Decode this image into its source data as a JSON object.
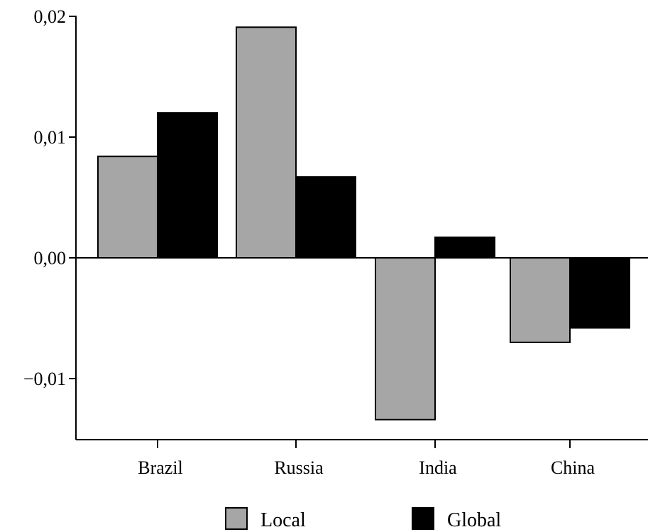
{
  "chart_data": {
    "type": "bar",
    "categories": [
      "Brazil",
      "Russia",
      "India",
      "China"
    ],
    "series": [
      {
        "name": "Local",
        "values": [
          0.0084,
          0.0191,
          -0.0134,
          -0.007
        ],
        "color": "#a6a6a6"
      },
      {
        "name": "Global",
        "values": [
          0.012,
          0.0067,
          0.0017,
          -0.0058
        ],
        "color": "#000000"
      }
    ],
    "ylim": [
      -0.015,
      0.02
    ],
    "yticks": [
      {
        "value": 0.02,
        "label": "0,02"
      },
      {
        "value": 0.01,
        "label": "0,01"
      },
      {
        "value": 0.0,
        "label": "0,00"
      },
      {
        "value": -0.01,
        "label": "−0,01"
      }
    ],
    "title": "",
    "xlabel": "",
    "ylabel": "",
    "grid": false,
    "legend_position": "bottom-center"
  }
}
